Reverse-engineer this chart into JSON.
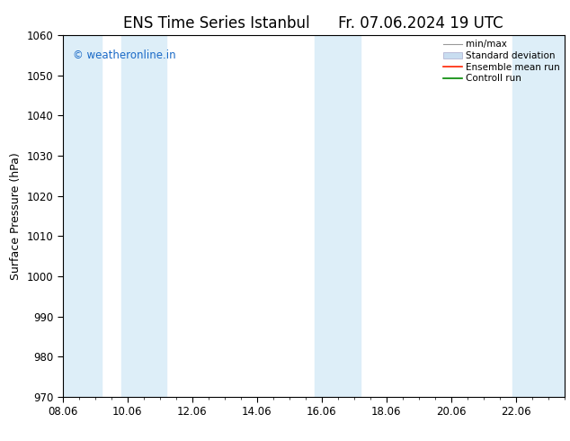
{
  "title": "ENS Time Series Istanbul",
  "title2": "Fr. 07.06.2024 19 UTC",
  "ylabel": "Surface Pressure (hPa)",
  "watermark": "© weatheronline.in",
  "watermark_color": "#1a6ac7",
  "ylim": [
    970,
    1060
  ],
  "yticks": [
    970,
    980,
    990,
    1000,
    1010,
    1020,
    1030,
    1040,
    1050,
    1060
  ],
  "xtick_labels": [
    "08.06",
    "10.06",
    "12.06",
    "14.06",
    "16.06",
    "18.06",
    "20.06",
    "22.06"
  ],
  "xlim_start": 0,
  "xlim_end": 15.5,
  "shaded_bands": [
    {
      "x_start": 0.0,
      "x_end": 1.2
    },
    {
      "x_start": 1.8,
      "x_end": 3.2
    },
    {
      "x_start": 7.8,
      "x_end": 9.2
    },
    {
      "x_start": 13.9,
      "x_end": 15.5
    }
  ],
  "band_color": "#ddeef8",
  "background_color": "#ffffff",
  "grid_color": "#dddddd",
  "title_fontsize": 12,
  "tick_fontsize": 8.5,
  "label_fontsize": 9,
  "legend_fontsize": 7.5
}
